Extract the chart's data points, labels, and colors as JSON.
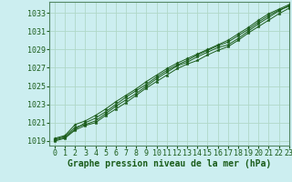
{
  "title": "Graphe pression niveau de la mer (hPa)",
  "bg_color": "#cceef0",
  "grid_color": "#b0d8c8",
  "line_color": "#1a5c1a",
  "marker_color": "#1a5c1a",
  "xlim": [
    -0.5,
    23
  ],
  "ylim": [
    1018.5,
    1034.2
  ],
  "yticks": [
    1019,
    1021,
    1023,
    1025,
    1027,
    1029,
    1031,
    1033
  ],
  "xticks": [
    0,
    1,
    2,
    3,
    4,
    5,
    6,
    7,
    8,
    9,
    10,
    11,
    12,
    13,
    14,
    15,
    16,
    17,
    18,
    19,
    20,
    21,
    22,
    23
  ],
  "series": [
    [
      1019.2,
      1019.5,
      1020.5,
      1020.8,
      1021.2,
      1022.0,
      1022.8,
      1023.5,
      1024.2,
      1025.0,
      1025.8,
      1026.5,
      1027.2,
      1027.6,
      1028.2,
      1028.7,
      1029.2,
      1029.5,
      1030.2,
      1031.0,
      1031.8,
      1032.5,
      1033.2,
      1033.8
    ],
    [
      1019.0,
      1019.3,
      1020.2,
      1020.7,
      1021.0,
      1021.8,
      1022.5,
      1023.2,
      1024.0,
      1024.8,
      1025.5,
      1026.2,
      1026.9,
      1027.4,
      1027.8,
      1028.4,
      1028.9,
      1029.3,
      1030.0,
      1030.8,
      1031.5,
      1032.2,
      1032.9,
      1033.5
    ],
    [
      1019.1,
      1019.4,
      1020.3,
      1021.0,
      1021.5,
      1022.2,
      1023.0,
      1023.8,
      1024.5,
      1025.2,
      1026.0,
      1026.7,
      1027.3,
      1027.8,
      1028.4,
      1028.9,
      1029.4,
      1029.8,
      1030.5,
      1031.2,
      1032.0,
      1032.7,
      1033.3,
      1033.7
    ],
    [
      1019.3,
      1019.6,
      1020.8,
      1021.2,
      1021.8,
      1022.5,
      1023.3,
      1024.0,
      1024.7,
      1025.5,
      1026.2,
      1026.9,
      1027.5,
      1028.0,
      1028.5,
      1029.0,
      1029.5,
      1030.0,
      1030.7,
      1031.4,
      1032.2,
      1032.9,
      1033.4,
      1033.9
    ]
  ],
  "xlabel_fontsize": 7,
  "tick_fontsize": 6,
  "ylabel_color": "#1a5c1a",
  "xlabel_color": "#1a5c1a"
}
